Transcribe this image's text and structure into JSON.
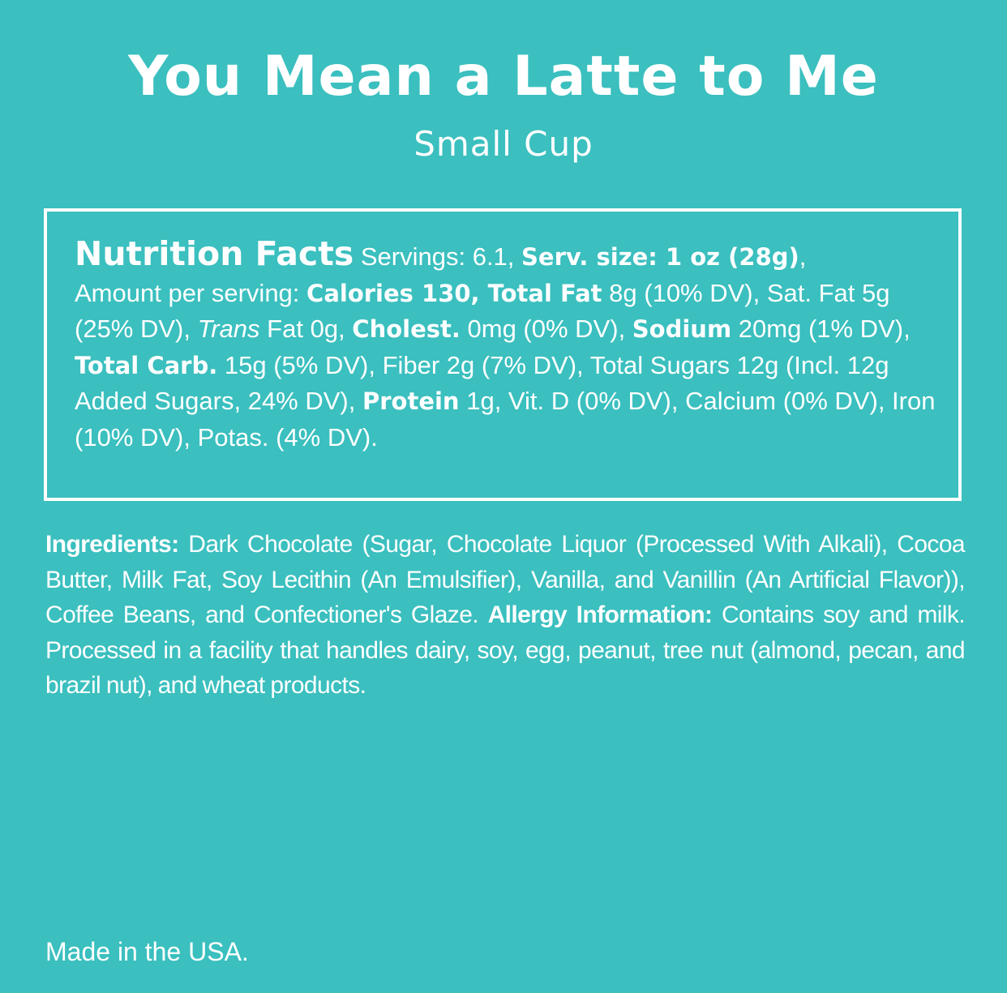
{
  "product": {
    "title": "You Mean a Latte to Me",
    "subtitle": "Small Cup"
  },
  "nutrition": {
    "heading": "Nutrition Facts",
    "servings": " Servings: 6.1, ",
    "serv_size": "Serv. size: 1 oz (28g)",
    "comma1": ",",
    "amount_label": "Amount per serving: ",
    "calories": "Calories 130, ",
    "total_fat_label": "Total Fat",
    "total_fat_value": " 8g (10% DV), Sat. Fat 5g (25% DV), ",
    "trans_label": "Trans",
    "trans_value": " Fat 0g, ",
    "cholest_label": "Cholest.",
    "cholest_value": " 0mg (0% DV), ",
    "sodium_label": "Sodium",
    "sodium_value": " 20mg (1% DV), ",
    "carb_label": "Total Carb.",
    "carb_value": " 15g (5% DV), Fiber 2g (7% DV), Total Sugars 12g (Incl. 12g Added Sugars, 24% DV), ",
    "protein_label": "Protein",
    "protein_value": " 1g, Vit. D (0% DV), Calcium (0% DV), Iron (10% DV), Potas. (4% DV)."
  },
  "ingredients": {
    "label": "Ingredients:",
    "text": " Dark Chocolate (Sugar, Chocolate Liquor (Processed With Alkali), Cocoa Butter, Milk Fat, Soy Lecithin (An Emulsifier), Vanilla, and Vanillin (An Artificial Flavor)), Coffee Beans, and Confectioner's Glaze. ",
    "allergy_label": "Allergy Information:",
    "allergy_text": " Contains soy and milk. Processed in a facility that handles dairy, soy, egg, peanut, tree nut (almond, pecan, and brazil nut), and wheat products."
  },
  "footer": {
    "origin": "Made in the USA."
  },
  "colors": {
    "background": "#3bbfbf",
    "text": "#ffffff"
  }
}
